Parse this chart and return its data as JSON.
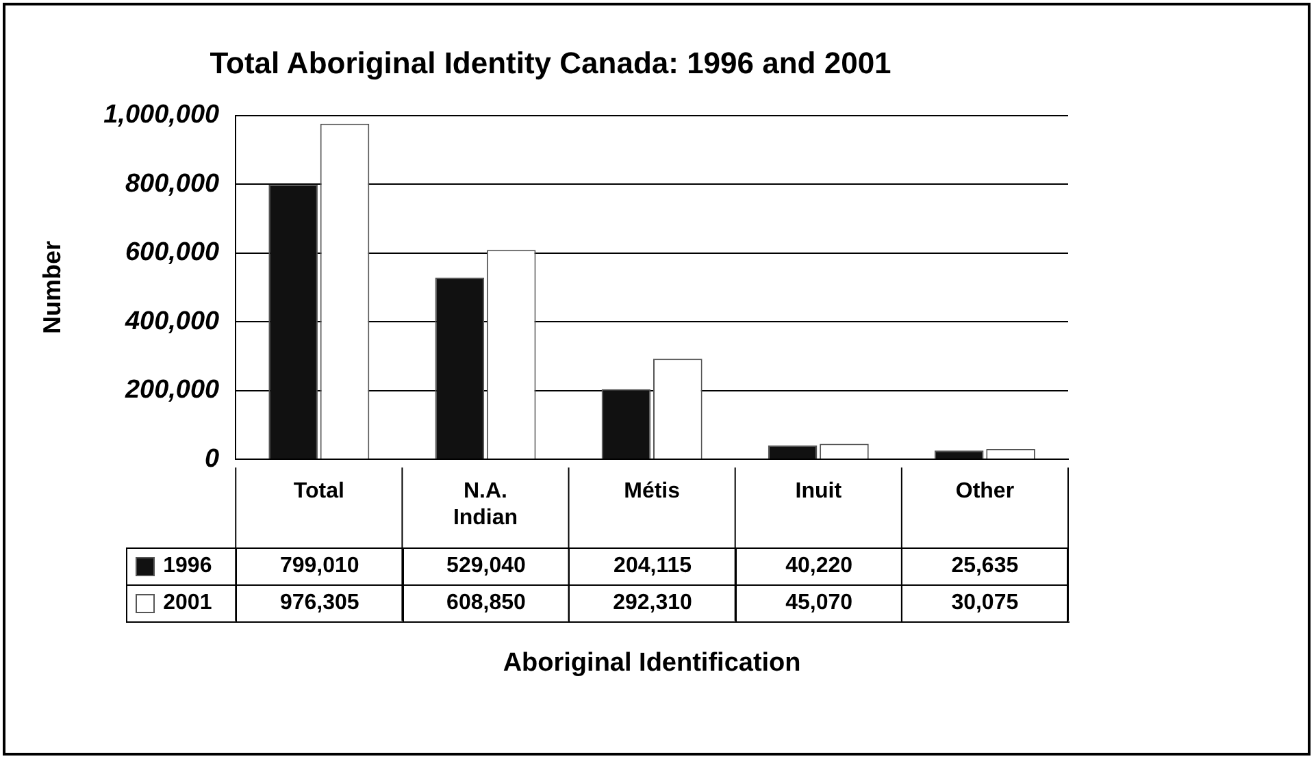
{
  "chart_data": {
    "type": "bar",
    "title": "Total Aboriginal Identity Canada: 1996 and 2001",
    "xlabel": "Aboriginal Identification",
    "ylabel": "Number",
    "categories": [
      "Total",
      "N.A. Indian",
      "Métis",
      "Inuit",
      "Other"
    ],
    "series": [
      {
        "name": "1996",
        "color": "#111111",
        "values": [
          799010,
          529040,
          204115,
          40220,
          25635
        ],
        "value_labels": [
          "799,010",
          "529,040",
          "204,115",
          "40,220",
          "25,635"
        ]
      },
      {
        "name": "2001",
        "color": "#ffffff",
        "values": [
          976305,
          608850,
          292310,
          45070,
          30075
        ],
        "value_labels": [
          "976,305",
          "608,850",
          "292,310",
          "45,070",
          "30,075"
        ]
      }
    ],
    "ylim": [
      0,
      1000000
    ],
    "yticks": [
      {
        "value": 0,
        "label": "0"
      },
      {
        "value": 200000,
        "label": "200,000"
      },
      {
        "value": 400000,
        "label": "400,000"
      },
      {
        "value": 600000,
        "label": "600,000"
      },
      {
        "value": 800000,
        "label": "800,000"
      },
      {
        "value": 1000000,
        "label": "1,000,000"
      }
    ],
    "grid": "y",
    "legend": "bottom"
  }
}
